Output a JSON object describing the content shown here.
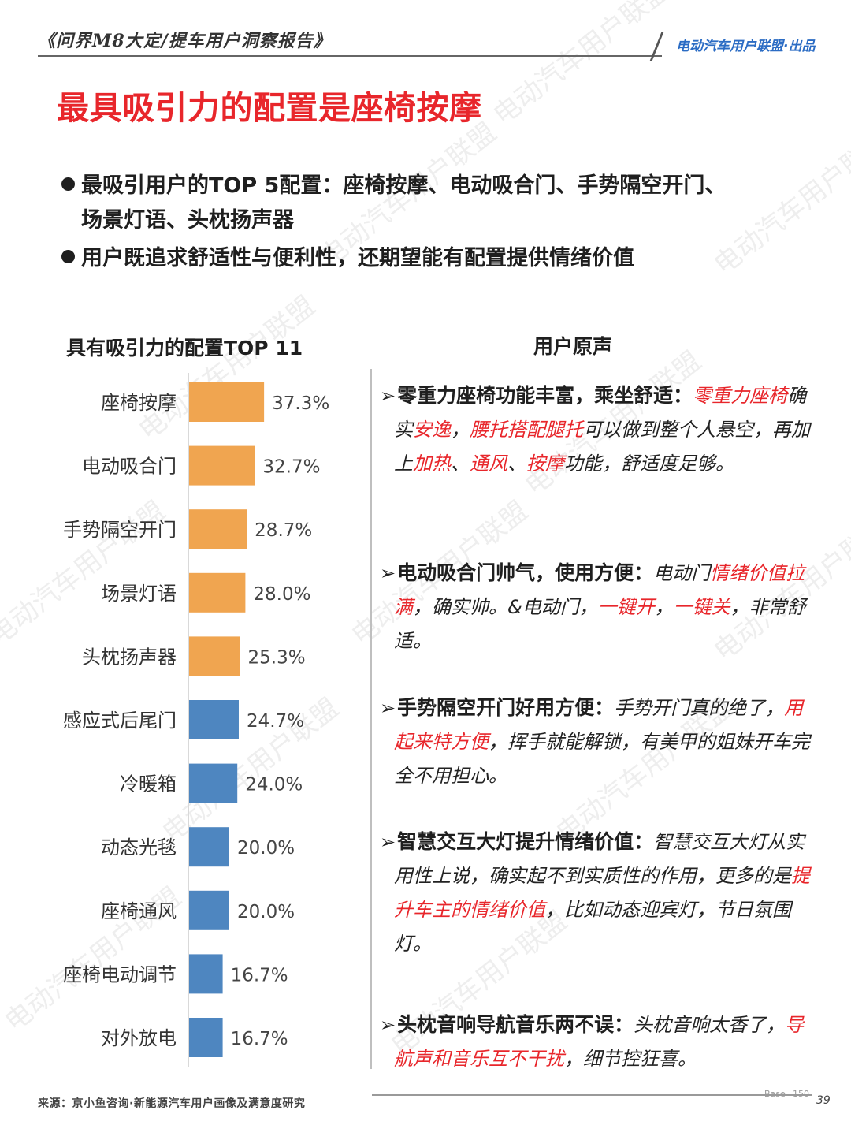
{
  "header": {
    "report_title": "《问界M8大定/提车用户洞察报告》",
    "publisher": "电动汽车用户联盟·出品"
  },
  "main_title": "最具吸引力的配置是座椅按摩",
  "bullets": {
    "b1_line1": "最吸引用户的TOP 5配置：座椅按摩、电动吸合门、手势隔空开门、",
    "b1_line2": "场景灯语、头枕扬声器",
    "b2": "用户既追求舒适性与便利性，还期望能有配置提供情绪价值"
  },
  "chart_data": {
    "type": "bar",
    "orientation": "horizontal",
    "title": "具有吸引力的配置TOP 11",
    "categories": [
      "座椅按摩",
      "电动吸合门",
      "手势隔空开门",
      "场景灯语",
      "头枕扬声器",
      "感应式后尾门",
      "冷暖箱",
      "动态光毯",
      "座椅通风",
      "座椅电动调节",
      "对外放电"
    ],
    "values": [
      37.3,
      32.7,
      28.7,
      28.0,
      25.3,
      24.7,
      24.0,
      20.0,
      20.0,
      16.7,
      16.7
    ],
    "value_labels": [
      "37.3%",
      "32.7%",
      "28.7%",
      "28.0%",
      "25.3%",
      "24.7%",
      "24.0%",
      "20.0%",
      "20.0%",
      "16.7%",
      "16.7%"
    ],
    "highlight_top": 5,
    "colors": {
      "top": "#f0a550",
      "rest": "#4e86c0"
    },
    "xlim": [
      0,
      40
    ],
    "grid": false,
    "legend": "none"
  },
  "quotes": {
    "title": "用户原声",
    "items": [
      {
        "lead": "零重力座椅功能丰富，乘坐舒适：",
        "parts": [
          {
            "t": "零重力座椅",
            "hl": true
          },
          {
            "t": "确实",
            "hl": false
          },
          {
            "t": "安逸",
            "hl": true
          },
          {
            "t": "，",
            "hl": false
          },
          {
            "t": "腰托搭配腿托",
            "hl": true
          },
          {
            "t": "可以做到整个人悬空，再加上",
            "hl": false
          },
          {
            "t": "加热",
            "hl": true
          },
          {
            "t": "、",
            "hl": false
          },
          {
            "t": "通风",
            "hl": true
          },
          {
            "t": "、",
            "hl": false
          },
          {
            "t": "按摩",
            "hl": true
          },
          {
            "t": "功能，舒适度足够。",
            "hl": false
          }
        ]
      },
      {
        "lead": "电动吸合门帅气，使用方便：",
        "parts": [
          {
            "t": "电动门",
            "hl": false
          },
          {
            "t": "情绪价值拉满",
            "hl": true
          },
          {
            "t": "，确实帅。&电动门，",
            "hl": false
          },
          {
            "t": "一键开",
            "hl": true
          },
          {
            "t": "，",
            "hl": false
          },
          {
            "t": "一键关",
            "hl": true
          },
          {
            "t": "，非常舒适。",
            "hl": false
          }
        ]
      },
      {
        "lead": "手势隔空开门好用方便：",
        "parts": [
          {
            "t": "手势开门真的绝了，",
            "hl": false
          },
          {
            "t": "用起来特方便",
            "hl": true
          },
          {
            "t": "，挥手就能解锁，有美甲的姐妹开车完全不用担心。",
            "hl": false
          }
        ]
      },
      {
        "lead": "智慧交互大灯提升情绪价值：",
        "parts": [
          {
            "t": "智慧交互大灯从实用性上说，确实起不到实质性的作用，更多的是",
            "hl": false
          },
          {
            "t": "提升车主的情绪价值",
            "hl": true
          },
          {
            "t": "，比如动态迎宾灯，节日氛围灯。",
            "hl": false
          }
        ]
      },
      {
        "lead": "头枕音响导航音乐两不误：",
        "parts": [
          {
            "t": "头枕音响太香了，",
            "hl": false
          },
          {
            "t": "导航声和音乐互不干扰",
            "hl": true
          },
          {
            "t": "，细节控狂喜。",
            "hl": false
          }
        ]
      }
    ]
  },
  "footer": {
    "source": "来源：亰小鱼咨询·新能源汽车用户画像及满意度研究",
    "base": "Base=150",
    "page": "39"
  },
  "watermark": "电动汽车用户联盟"
}
